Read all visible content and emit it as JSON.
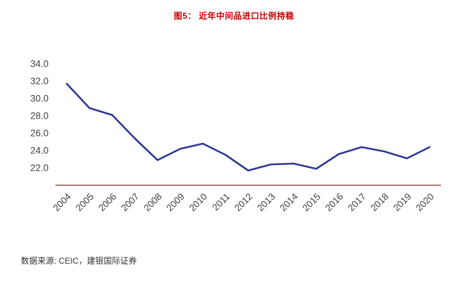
{
  "page": {
    "source": "数据来源: CEIC，建银国际证券"
  },
  "chart_data": {
    "type": "line",
    "title": "图5： 近年中间品进口比例持稳",
    "categories": [
      "2004",
      "2005",
      "2006",
      "2007",
      "2008",
      "2009",
      "2010",
      "2011",
      "2012",
      "2013",
      "2014",
      "2015",
      "2016",
      "2017",
      "2018",
      "2019",
      "2020"
    ],
    "series": [
      {
        "name": "中间品进口比例",
        "values": [
          31.7,
          28.9,
          28.1,
          25.4,
          22.9,
          24.2,
          24.8,
          23.5,
          21.7,
          22.4,
          22.5,
          21.9,
          23.6,
          24.4,
          23.9,
          23.1,
          24.4
        ]
      }
    ],
    "ylim": [
      20.0,
      34.0
    ],
    "yticks": [
      "22.0",
      "24.0",
      "26.0",
      "28.0",
      "30.0",
      "32.0",
      "34.0"
    ],
    "grid": false,
    "legend": "none",
    "line_color": "#2b3890",
    "axis_color": "#9c4a41",
    "title_color": "#cc0000",
    "label_color": "#404040"
  }
}
